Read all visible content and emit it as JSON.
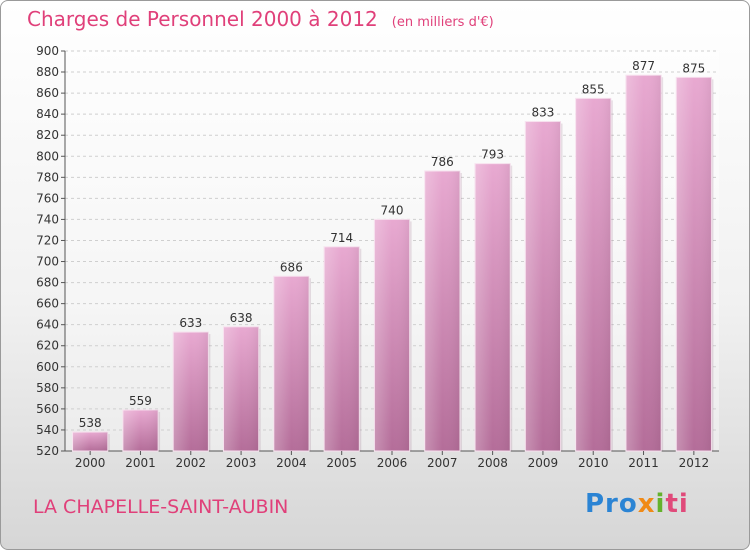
{
  "title": "Charges de Personnel 2000 à 2012",
  "subtitle": "(en milliers d'€)",
  "commune": "LA CHAPELLE-SAINT-AUBIN",
  "logo": {
    "p1": "Pro",
    "p2": "x",
    "p3": "i",
    "p4": "ti"
  },
  "colors": {
    "bar_top": "#e8a9d1",
    "bar_bottom": "#b46d99",
    "title": "#e0407a"
  },
  "chart_data": {
    "type": "bar",
    "categories": [
      "2000",
      "2001",
      "2002",
      "2003",
      "2004",
      "2005",
      "2006",
      "2007",
      "2008",
      "2009",
      "2010",
      "2011",
      "2012"
    ],
    "values": [
      538,
      559,
      633,
      638,
      686,
      714,
      740,
      786,
      793,
      833,
      855,
      877,
      875
    ],
    "ylim": [
      520,
      900
    ],
    "yticks": [
      520,
      540,
      560,
      580,
      600,
      620,
      640,
      660,
      680,
      700,
      720,
      740,
      760,
      780,
      800,
      820,
      840,
      860,
      880,
      900
    ],
    "grid": true
  }
}
